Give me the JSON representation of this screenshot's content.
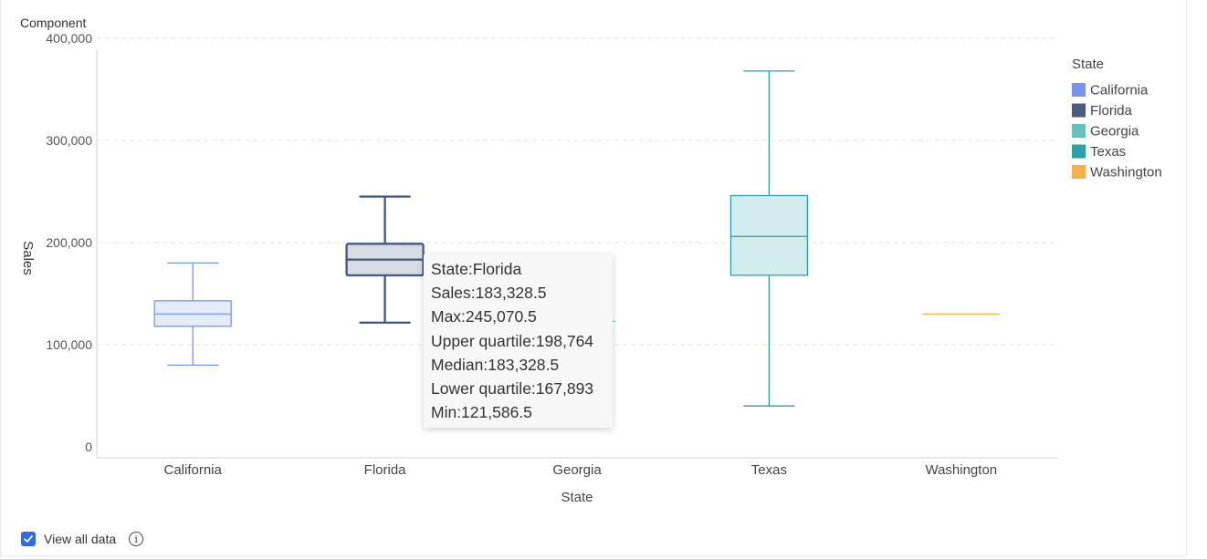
{
  "panel": {
    "title": "Component"
  },
  "chart_data": {
    "type": "boxplot",
    "title": "",
    "xlabel": "State",
    "ylabel": "Sales",
    "ylim": [
      0,
      400000
    ],
    "yticks": [
      0,
      100000,
      200000,
      300000,
      400000
    ],
    "ytick_labels": [
      "0",
      "100,000",
      "200,000",
      "300,000",
      "400,000"
    ],
    "grid": true,
    "legend_title": "State",
    "legend_position": "right",
    "categories": [
      "California",
      "Florida",
      "Georgia",
      "Texas",
      "Washington"
    ],
    "series": [
      {
        "name": "California",
        "color": "#7596ec",
        "fill": "#e3ebfc",
        "min": 80000,
        "q1": 118000,
        "median": 130000,
        "q3": 143000,
        "max": 180000
      },
      {
        "name": "Florida",
        "color": "#4b5c7e",
        "fill": "#d8dde5",
        "min": 121586.5,
        "q1": 167893,
        "median": 183328.5,
        "q3": 198764,
        "max": 245070.5
      },
      {
        "name": "Georgia",
        "color": "#68c2b8",
        "fill": "#e1f3f1",
        "min": 123000,
        "q1": 123000,
        "median": 123000,
        "q3": 123000,
        "max": 123000
      },
      {
        "name": "Texas",
        "color": "#2e9fa8",
        "fill": "#d3ecee",
        "min": 40000,
        "q1": 168000,
        "median": 206000,
        "q3": 246000,
        "max": 368000
      },
      {
        "name": "Washington",
        "color": "#f5b04b",
        "fill": "#fdf0dc",
        "min": 130000,
        "q1": 130000,
        "median": 130000,
        "q3": 130000,
        "max": 130000
      }
    ]
  },
  "tooltip": {
    "state": "State:Florida",
    "sales": "Sales:183,328.5",
    "max": "Max:245,070.5",
    "q3": "Upper quartile:198,764",
    "median": "Median:183,328.5",
    "q1": "Lower quartile:167,893",
    "min": "Min:121,586.5"
  },
  "footer": {
    "view_all_label": "View all data",
    "view_all_checked": true
  }
}
